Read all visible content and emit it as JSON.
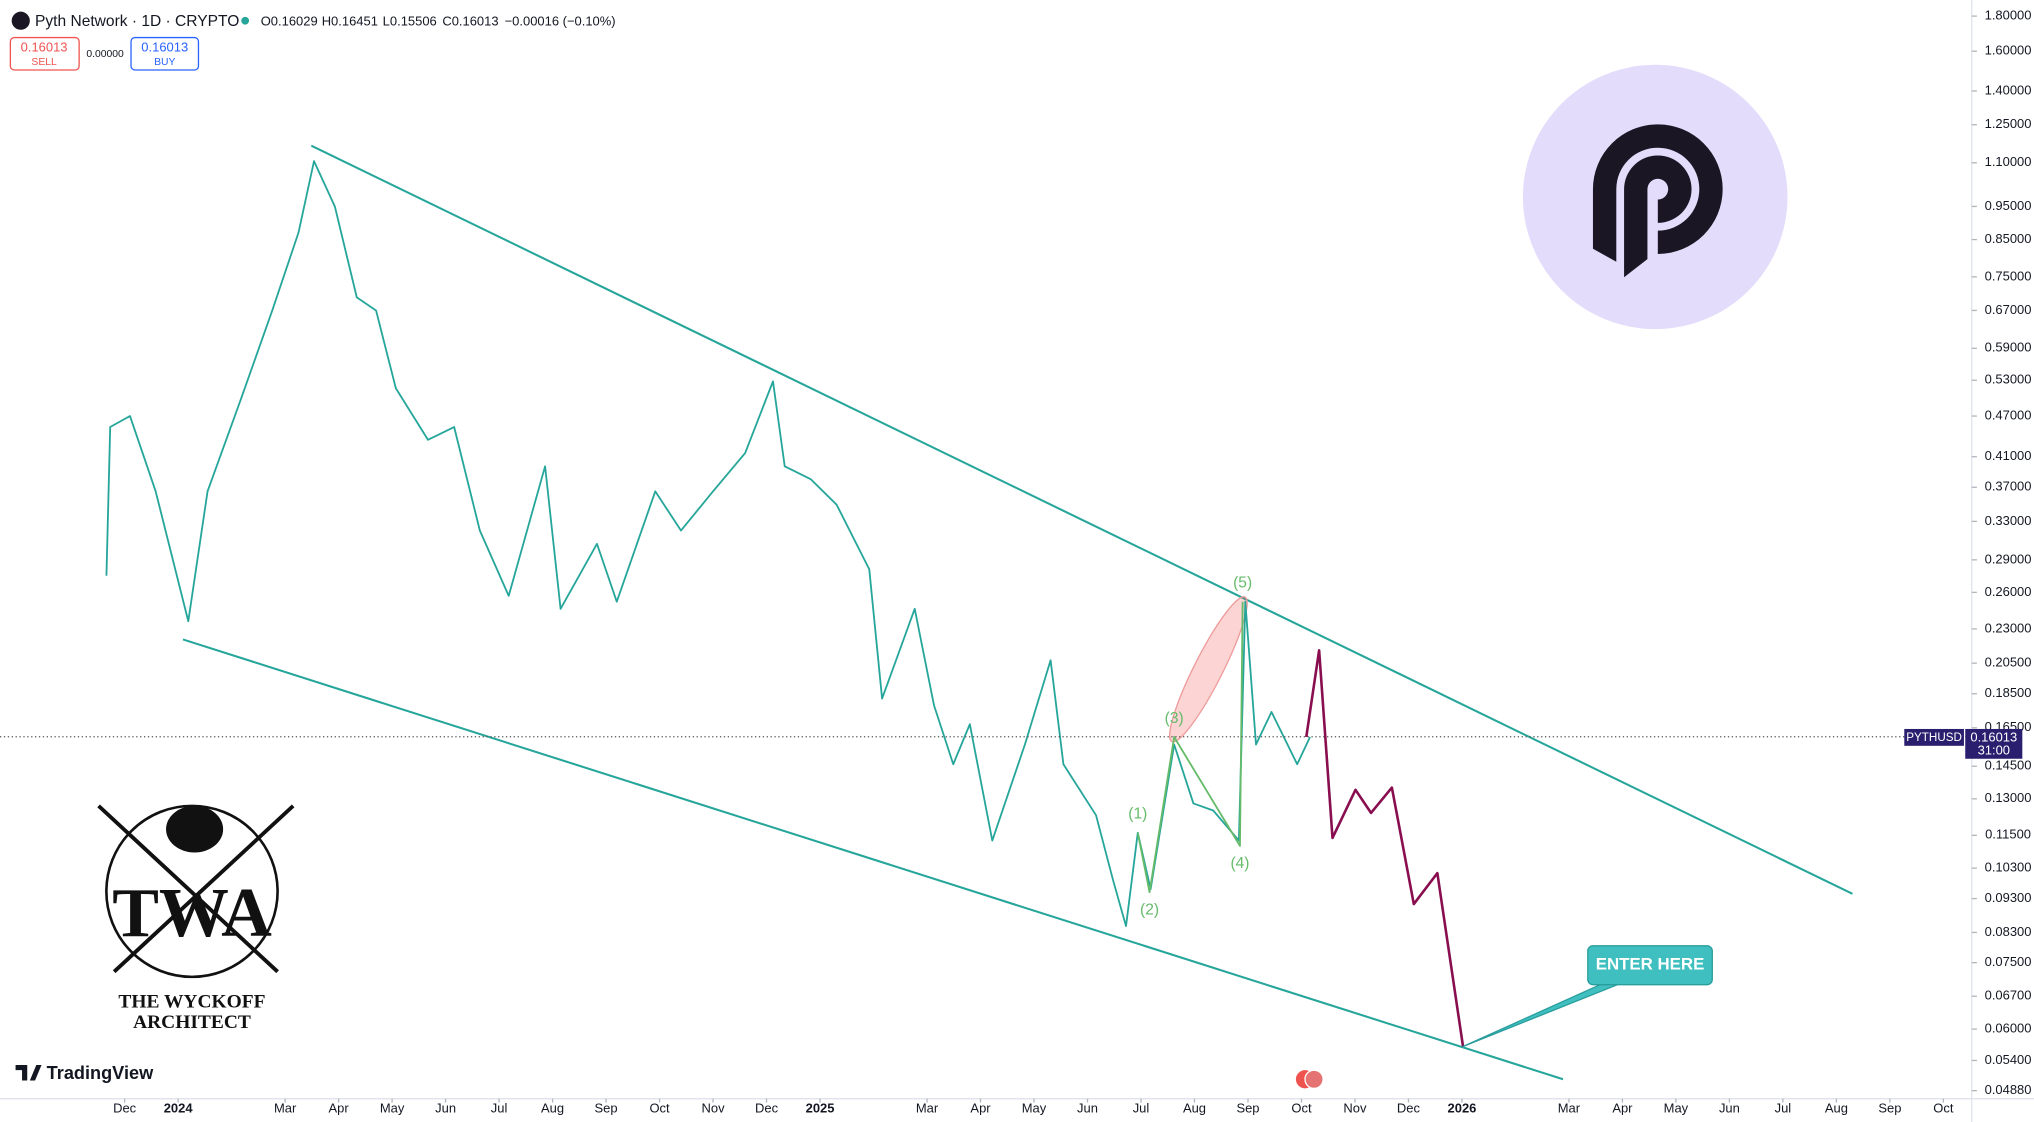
{
  "chart_data": {
    "type": "line",
    "log_scale": true,
    "grid": false,
    "header": {
      "symbol": "Pyth Network · 1D · CRYPTO",
      "open": "O0.16029",
      "high": "H0.16451",
      "low": "L0.15506",
      "close": "C0.16013",
      "change": "−0.00016 (−0.10%)"
    },
    "trade": {
      "sell_price": "0.16013",
      "sell": "SELL",
      "spread": "0.00000",
      "buy_price": "0.16013",
      "buy": "BUY"
    },
    "price_label": {
      "ticker": "PYTHUSD",
      "value": {
        "value": 0.16013,
        "label": "0.16013"
      },
      "countdown": "31:00"
    },
    "ylim": [
      0.0475,
      1.9
    ],
    "yticks": [
      {
        "value": 1.8,
        "label": "1.80000"
      },
      {
        "value": 1.6,
        "label": "1.60000"
      },
      {
        "value": 1.4,
        "label": "1.40000"
      },
      {
        "value": 1.25,
        "label": "1.25000"
      },
      {
        "value": 1.1,
        "label": "1.10000"
      },
      {
        "value": 0.95,
        "label": "0.95000"
      },
      {
        "value": 0.85,
        "label": "0.85000"
      },
      {
        "value": 0.75,
        "label": "0.75000"
      },
      {
        "value": 0.67,
        "label": "0.67000"
      },
      {
        "value": 0.59,
        "label": "0.59000"
      },
      {
        "value": 0.53,
        "label": "0.53000"
      },
      {
        "value": 0.47,
        "label": "0.47000"
      },
      {
        "value": 0.41,
        "label": "0.41000"
      },
      {
        "value": 0.37,
        "label": "0.37000"
      },
      {
        "value": 0.33,
        "label": "0.33000"
      },
      {
        "value": 0.29,
        "label": "0.29000"
      },
      {
        "value": 0.26,
        "label": "0.26000"
      },
      {
        "value": 0.23,
        "label": "0.23000"
      },
      {
        "value": 0.205,
        "label": "0.20500"
      },
      {
        "value": 0.185,
        "label": "0.18500"
      },
      {
        "value": 0.165,
        "label": "0.16500"
      },
      {
        "value": 0.145,
        "label": "0.14500"
      },
      {
        "value": 0.13,
        "label": "0.13000"
      },
      {
        "value": 0.115,
        "label": "0.11500"
      },
      {
        "value": 0.103,
        "label": "0.10300"
      },
      {
        "value": 0.093,
        "label": "0.09300"
      },
      {
        "value": 0.083,
        "label": "0.08300"
      },
      {
        "value": 0.075,
        "label": "0.07500"
      },
      {
        "value": 0.067,
        "label": "0.06700"
      },
      {
        "value": 0.06,
        "label": "0.06000"
      },
      {
        "value": 0.054,
        "label": "0.05400"
      },
      {
        "value": 0.0488,
        "label": "0.04880"
      }
    ],
    "xlim": [
      -2.33,
      34.53
    ],
    "xticks": [
      {
        "value": 0,
        "label": "Dec"
      },
      {
        "value": 1,
        "label": "2024"
      },
      {
        "value": 3,
        "label": "Mar"
      },
      {
        "value": 4,
        "label": "Apr"
      },
      {
        "value": 5,
        "label": "May"
      },
      {
        "value": 6,
        "label": "Jun"
      },
      {
        "value": 7,
        "label": "Jul"
      },
      {
        "value": 8,
        "label": "Aug"
      },
      {
        "value": 9,
        "label": "Sep"
      },
      {
        "value": 10,
        "label": "Oct"
      },
      {
        "value": 11,
        "label": "Nov"
      },
      {
        "value": 12,
        "label": "Dec"
      },
      {
        "value": 13,
        "label": "2025"
      },
      {
        "value": 15,
        "label": "Mar"
      },
      {
        "value": 16,
        "label": "Apr"
      },
      {
        "value": 17,
        "label": "May"
      },
      {
        "value": 18,
        "label": "Jun"
      },
      {
        "value": 19,
        "label": "Jul"
      },
      {
        "value": 20,
        "label": "Aug"
      },
      {
        "value": 21,
        "label": "Sep"
      },
      {
        "value": 22,
        "label": "Oct"
      },
      {
        "value": 23,
        "label": "Nov"
      },
      {
        "value": 24,
        "label": "Dec"
      },
      {
        "value": 25,
        "label": "2026"
      },
      {
        "value": 27,
        "label": "Mar"
      },
      {
        "value": 28,
        "label": "Apr"
      },
      {
        "value": 29,
        "label": "May"
      },
      {
        "value": 30,
        "label": "Jun"
      },
      {
        "value": 31,
        "label": "Jul"
      },
      {
        "value": 32,
        "label": "Aug"
      },
      {
        "value": 33,
        "label": "Sep"
      },
      {
        "value": 34,
        "label": "Oct"
      }
    ],
    "price": {
      "color": "#26a69a",
      "x": [
        -0.34,
        -0.27,
        0.1,
        0.58,
        1.19,
        1.55,
        2.16,
        2.76,
        3.25,
        3.54,
        3.93,
        4.34,
        4.7,
        5.07,
        5.67,
        6.16,
        6.64,
        7.18,
        7.86,
        8.15,
        8.83,
        9.2,
        9.92,
        10.4,
        11.0,
        11.6,
        12.12,
        12.34,
        12.83,
        13.31,
        13.92,
        14.16,
        14.77,
        15.13,
        15.49,
        15.8,
        16.22,
        16.83,
        17.31,
        17.55,
        18.16,
        18.48,
        18.72,
        18.94,
        19.18,
        19.62,
        19.98,
        20.35,
        20.83,
        20.95,
        21.15,
        21.44,
        21.92,
        22.16
      ],
      "values": [
        0.275,
        0.453,
        0.47,
        0.365,
        0.236,
        0.365,
        0.494,
        0.67,
        0.87,
        1.106,
        0.95,
        0.7,
        0.67,
        0.516,
        0.434,
        0.453,
        0.32,
        0.257,
        0.397,
        0.246,
        0.306,
        0.252,
        0.365,
        0.32,
        0.365,
        0.415,
        0.528,
        0.397,
        0.38,
        0.349,
        0.281,
        0.182,
        0.246,
        0.178,
        0.146,
        0.167,
        0.113,
        0.156,
        0.207,
        0.146,
        0.123,
        0.0988,
        0.0848,
        0.116,
        0.096,
        0.156,
        0.128,
        0.125,
        0.113,
        0.252,
        0.156,
        0.174,
        0.146,
        0.16
      ]
    },
    "projection": {
      "color": "#880e4f",
      "x": [
        22.09,
        22.33,
        22.58,
        23.01,
        23.3,
        23.69,
        24.1,
        24.54,
        25.02
      ],
      "values": [
        0.16,
        0.214,
        0.114,
        0.134,
        0.124,
        0.135,
        0.0913,
        0.1013,
        0.0566
      ]
    },
    "channel_upper": {
      "color": "#26a69a",
      "x": [
        3.49,
        32.3
      ],
      "values": [
        1.165,
        0.0945
      ]
    },
    "channel_lower": {
      "color": "#26a69a",
      "x": [
        1.09,
        26.89
      ],
      "values": [
        0.222,
        0.0507
      ]
    },
    "waves": {
      "color": "#66bb6a",
      "labels": [
        "(1)",
        "(2)",
        "(3)",
        "(4)",
        "(5)"
      ],
      "x": [
        18.94,
        19.16,
        19.62,
        20.85,
        20.9
      ],
      "values": [
        0.116,
        0.095,
        0.16,
        0.111,
        0.252
      ]
    },
    "callout": "ENTER HERE",
    "brand": "TradingView",
    "watermark": {
      "initials": "TWA",
      "line1": "THE WYCKOFF",
      "line2": "ARCHITECT"
    }
  }
}
